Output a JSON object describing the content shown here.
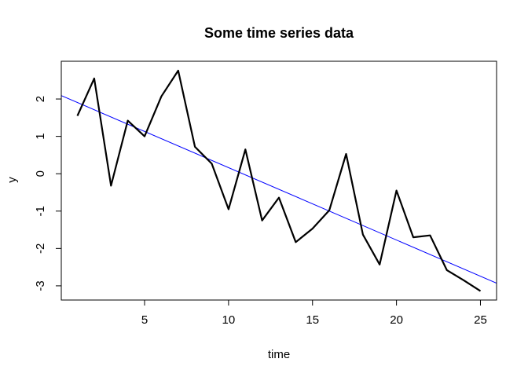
{
  "chart_data": {
    "type": "line",
    "title": "Some time series data",
    "xlabel": "time",
    "ylabel": "y",
    "xlim": [
      0.04,
      25.96
    ],
    "ylim": [
      -3.38,
      3.01
    ],
    "x_ticks": [
      5,
      10,
      15,
      20,
      25
    ],
    "y_ticks": [
      -3,
      -2,
      -1,
      0,
      1,
      2
    ],
    "x_tick_labels": [
      "5",
      "10",
      "15",
      "20",
      "25"
    ],
    "y_tick_labels": [
      "-3",
      "-2",
      "-1",
      "0",
      "1",
      "2"
    ],
    "grid": false,
    "series": [
      {
        "x": [
          1,
          2,
          3,
          4,
          5,
          6,
          7,
          8,
          9,
          10,
          11,
          12,
          13,
          14,
          15,
          16,
          17,
          18,
          19,
          20,
          21,
          22,
          23,
          24,
          25
        ],
        "values": [
          1.55,
          2.55,
          -0.32,
          1.42,
          1.0,
          2.07,
          2.76,
          0.72,
          0.27,
          -0.95,
          0.65,
          -1.25,
          -0.64,
          -1.83,
          -1.47,
          -0.98,
          0.53,
          -1.63,
          -2.43,
          -0.45,
          -1.7,
          -1.65,
          -2.58,
          -2.85,
          -3.14
        ],
        "color": "#000000"
      }
    ],
    "trend_line": {
      "intercept": 2.1,
      "slope": -0.1937,
      "color": "#0000ff"
    }
  }
}
